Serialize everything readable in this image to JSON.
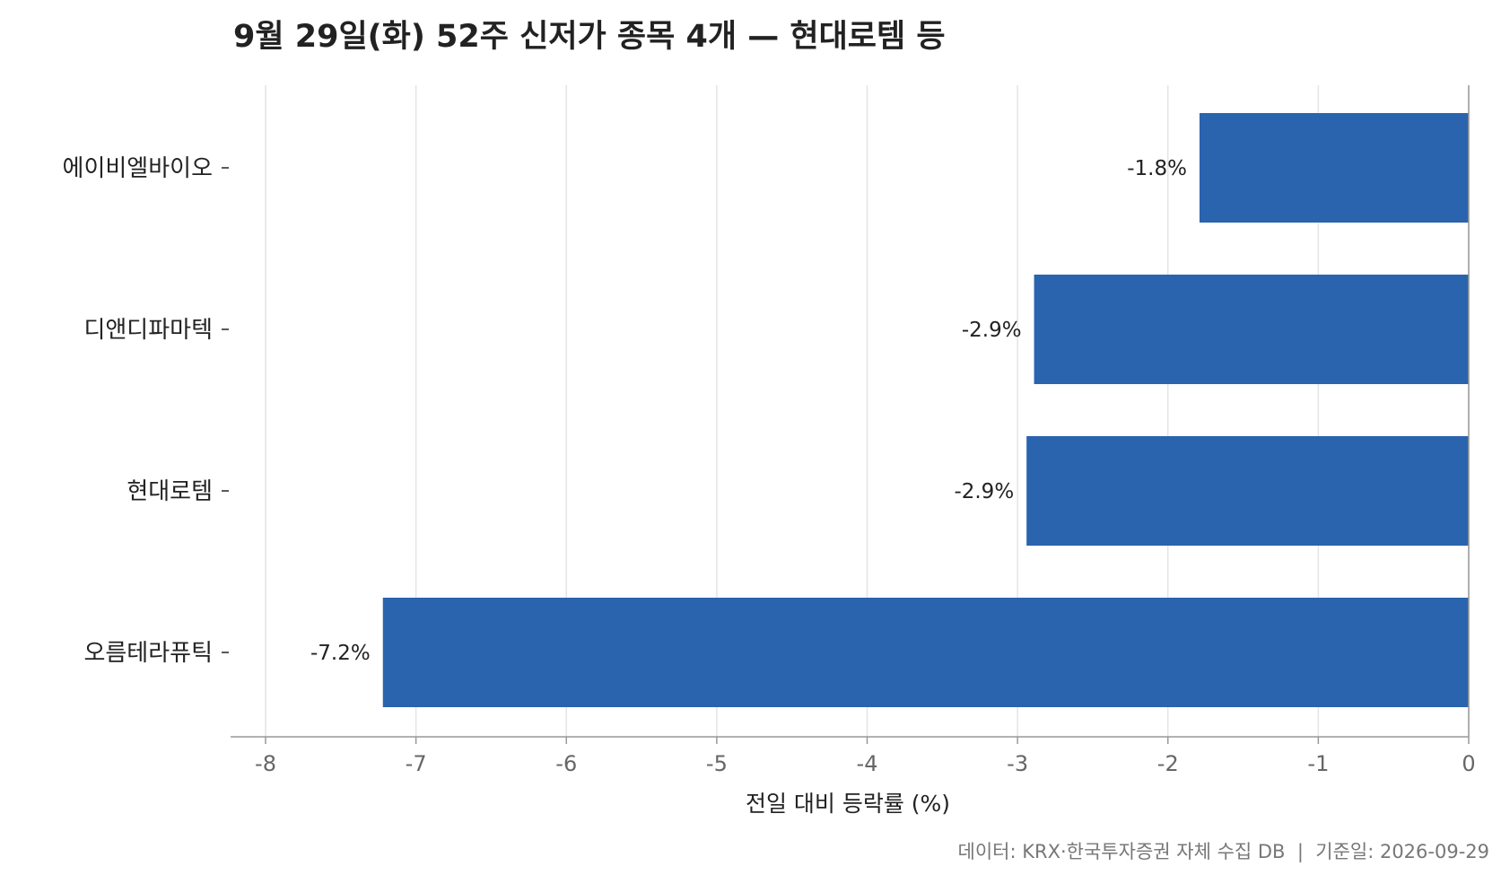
{
  "chart_data": {
    "type": "bar",
    "orientation": "horizontal",
    "title": "9월 29일(화) 52주 신저가 종목 4개 — 현대로템 등",
    "xlabel": "전일 대비 등락률 (%)",
    "ylabel": "",
    "categories": [
      "에이비엘바이오",
      "디앤디파마텍",
      "현대로템",
      "오름테라퓨틱"
    ],
    "values": [
      -1.79,
      -2.89,
      -2.94,
      -7.22
    ],
    "data_labels": [
      "-1.8%",
      "-2.9%",
      "-2.9%",
      "-7.2%"
    ],
    "xlim": [
      -8,
      0
    ],
    "xticks": [
      -8,
      -7,
      -6,
      -5,
      -4,
      -3,
      -2,
      -1,
      0
    ],
    "xtick_labels": [
      "-8",
      "-7",
      "-6",
      "-5",
      "-4",
      "-3",
      "-2",
      "-1",
      "0"
    ],
    "grid": "vertical",
    "legend": "none",
    "bar_color": "#2a63ae"
  },
  "footer": {
    "source_text": "데이터: KRX·한국투자증권 자체 수집 DB  |  기준일: 2026-09-29"
  }
}
